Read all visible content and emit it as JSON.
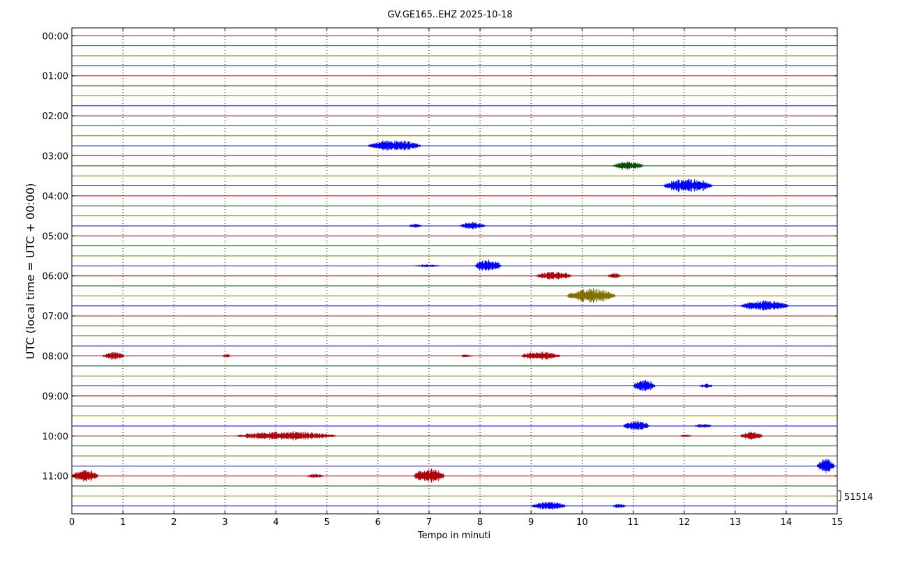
{
  "title": "GV.GE165..EHZ 2025-10-18",
  "xlabel": "Tempo in minuti",
  "ylabel": "UTC (local time = UTC + 00:00)",
  "scale_label": "51514",
  "colors": [
    "#b0000a",
    "#0a4f0a",
    "#7f7000",
    "#0000ff"
  ],
  "chart_data": {
    "type": "line",
    "subtype": "helicorder",
    "title": "GV.GE165..EHZ 2025-10-18",
    "xlabel": "Tempo in minuti",
    "ylabel": "UTC (local time = UTC + 00:00)",
    "xlim": [
      0,
      15
    ],
    "x_ticks": [
      "0",
      "1",
      "2",
      "3",
      "4",
      "5",
      "6",
      "7",
      "8",
      "9",
      "10",
      "11",
      "12",
      "13",
      "14",
      "15"
    ],
    "y_tick_labels": [
      "00:00",
      "01:00",
      "02:00",
      "03:00",
      "04:00",
      "05:00",
      "06:00",
      "07:00",
      "08:00",
      "09:00",
      "10:00",
      "11:00"
    ],
    "trace_minutes": 15,
    "num_traces": 48,
    "trace_colors_cycle": [
      "red",
      "green",
      "olive",
      "blue"
    ],
    "grid": "vertical dotted",
    "events": [
      {
        "trace_start": "02:45",
        "start_min": 5.8,
        "end_min": 7.0,
        "amplitude": 0.8
      },
      {
        "trace_start": "03:15",
        "start_min": 10.6,
        "end_min": 11.3,
        "amplitude": 0.6
      },
      {
        "trace_start": "03:45",
        "start_min": 11.6,
        "end_min": 12.7,
        "amplitude": 1.0
      },
      {
        "trace_start": "04:45",
        "start_min": 6.6,
        "end_min": 6.9,
        "amplitude": 0.3
      },
      {
        "trace_start": "04:45",
        "start_min": 7.6,
        "end_min": 8.2,
        "amplitude": 0.5
      },
      {
        "trace_start": "05:45",
        "start_min": 6.7,
        "end_min": 7.3,
        "amplitude": 0.2
      },
      {
        "trace_start": "05:45",
        "start_min": 7.9,
        "end_min": 8.5,
        "amplitude": 0.9
      },
      {
        "trace_start": "06:00",
        "start_min": 9.1,
        "end_min": 9.9,
        "amplitude": 0.6
      },
      {
        "trace_start": "06:00",
        "start_min": 10.5,
        "end_min": 10.8,
        "amplitude": 0.4
      },
      {
        "trace_start": "06:30",
        "start_min": 9.7,
        "end_min": 10.8,
        "amplitude": 1.0
      },
      {
        "trace_start": "06:45",
        "start_min": 13.1,
        "end_min": 14.2,
        "amplitude": 0.7
      },
      {
        "trace_start": "08:00",
        "start_min": 0.6,
        "end_min": 1.1,
        "amplitude": 0.5
      },
      {
        "trace_start": "08:00",
        "start_min": 2.95,
        "end_min": 3.15,
        "amplitude": 0.3
      },
      {
        "trace_start": "08:00",
        "start_min": 7.6,
        "end_min": 7.9,
        "amplitude": 0.2
      },
      {
        "trace_start": "08:00",
        "start_min": 8.8,
        "end_min": 9.7,
        "amplitude": 0.6
      },
      {
        "trace_start": "08:45",
        "start_min": 11.0,
        "end_min": 11.5,
        "amplitude": 0.9
      },
      {
        "trace_start": "08:45",
        "start_min": 12.3,
        "end_min": 12.6,
        "amplitude": 0.3
      },
      {
        "trace_start": "09:45",
        "start_min": 10.8,
        "end_min": 11.4,
        "amplitude": 0.7
      },
      {
        "trace_start": "09:45",
        "start_min": 12.2,
        "end_min": 12.6,
        "amplitude": 0.3
      },
      {
        "trace_start": "10:00",
        "start_min": 3.2,
        "end_min": 5.5,
        "amplitude": 0.6
      },
      {
        "trace_start": "10:00",
        "start_min": 11.9,
        "end_min": 12.2,
        "amplitude": 0.2
      },
      {
        "trace_start": "10:00",
        "start_min": 13.1,
        "end_min": 13.6,
        "amplitude": 0.6
      },
      {
        "trace_start": "10:45",
        "start_min": 14.6,
        "end_min": 15.0,
        "amplitude": 1.0
      },
      {
        "trace_start": "11:00",
        "start_min": 0.0,
        "end_min": 0.6,
        "amplitude": 0.9
      },
      {
        "trace_start": "11:00",
        "start_min": 4.6,
        "end_min": 5.0,
        "amplitude": 0.3
      },
      {
        "trace_start": "11:00",
        "start_min": 6.7,
        "end_min": 7.4,
        "amplitude": 1.0
      },
      {
        "trace_start": "11:45",
        "start_min": 9.0,
        "end_min": 9.8,
        "amplitude": 0.6
      },
      {
        "trace_start": "11:45",
        "start_min": 10.6,
        "end_min": 10.9,
        "amplitude": 0.3
      }
    ]
  }
}
